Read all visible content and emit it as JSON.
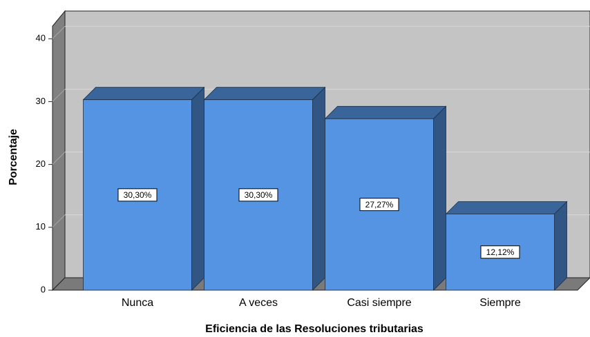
{
  "chart_data": {
    "type": "bar3d",
    "x_label": "Eficiencia de las Resoluciones tributarias",
    "y_label": "Porcentaje",
    "categories": [
      "Nunca",
      "A veces",
      "Casi siempre",
      "Siempre"
    ],
    "values": [
      30.3,
      30.3,
      27.27,
      12.12
    ],
    "value_labels": [
      "30,30%",
      "30,30%",
      "27,27%",
      "12,12%"
    ],
    "color": "#5594e2",
    "ylim": [
      0,
      42
    ],
    "yticks": [
      0,
      10,
      20,
      30,
      40
    ],
    "grid": true
  }
}
